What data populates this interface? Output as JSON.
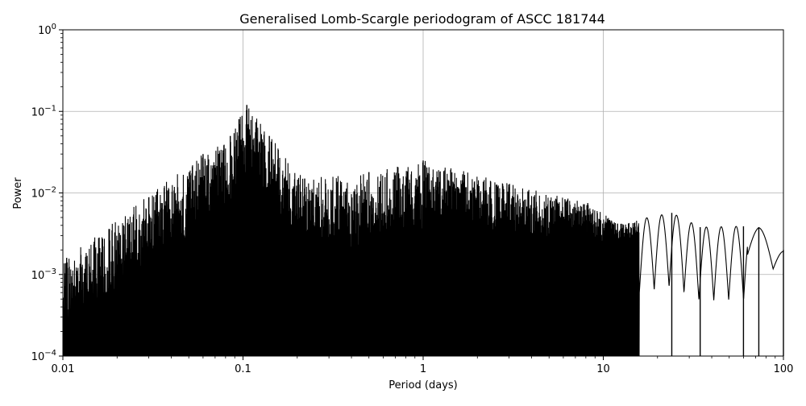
{
  "chart_data": {
    "type": "line",
    "title": "Generalised Lomb-Scargle periodogram of ASCC 181744",
    "xlabel": "Period (days)",
    "ylabel": "Power",
    "xscale": "log",
    "yscale": "log",
    "xlim": [
      0.01,
      100
    ],
    "ylim": [
      0.0001,
      1
    ],
    "grid": true,
    "line_color": "#000000",
    "x_ticks": [
      {
        "value": 0.01,
        "label": "0.01"
      },
      {
        "value": 0.1,
        "label": "0.1"
      },
      {
        "value": 1,
        "label": "1"
      },
      {
        "value": 10,
        "label": "10"
      },
      {
        "value": 100,
        "label": "100"
      }
    ],
    "y_ticks": [
      {
        "value": 0.0001,
        "base": "10",
        "exp": "−4"
      },
      {
        "value": 0.001,
        "base": "10",
        "exp": "−3"
      },
      {
        "value": 0.01,
        "base": "10",
        "exp": "−2"
      },
      {
        "value": 0.1,
        "base": "10",
        "exp": "−1"
      },
      {
        "value": 1,
        "base": "10",
        "exp": "0"
      }
    ],
    "series": [
      {
        "peaks": [
          {
            "x": 0.0105,
            "y": 0.0016
          },
          {
            "x": 0.06,
            "y": 0.03
          },
          {
            "x": 0.085,
            "y": 0.05
          },
          {
            "x": 0.095,
            "y": 0.08
          },
          {
            "x": 0.105,
            "y": 0.12
          },
          {
            "x": 0.14,
            "y": 0.05
          },
          {
            "x": 0.22,
            "y": 0.015
          },
          {
            "x": 0.5,
            "y": 0.018
          },
          {
            "x": 1.0,
            "y": 0.025
          },
          {
            "x": 8.2,
            "y": 0.0075
          },
          {
            "x": 12.0,
            "y": 0.0042
          },
          {
            "x": 24.0,
            "y": 0.0057
          },
          {
            "x": 34.5,
            "y": 0.0038
          },
          {
            "x": 60.0,
            "y": 0.0039
          },
          {
            "x": 73.0,
            "y": 0.0038
          },
          {
            "x": 100.0,
            "y": 0.002
          }
        ]
      }
    ]
  }
}
